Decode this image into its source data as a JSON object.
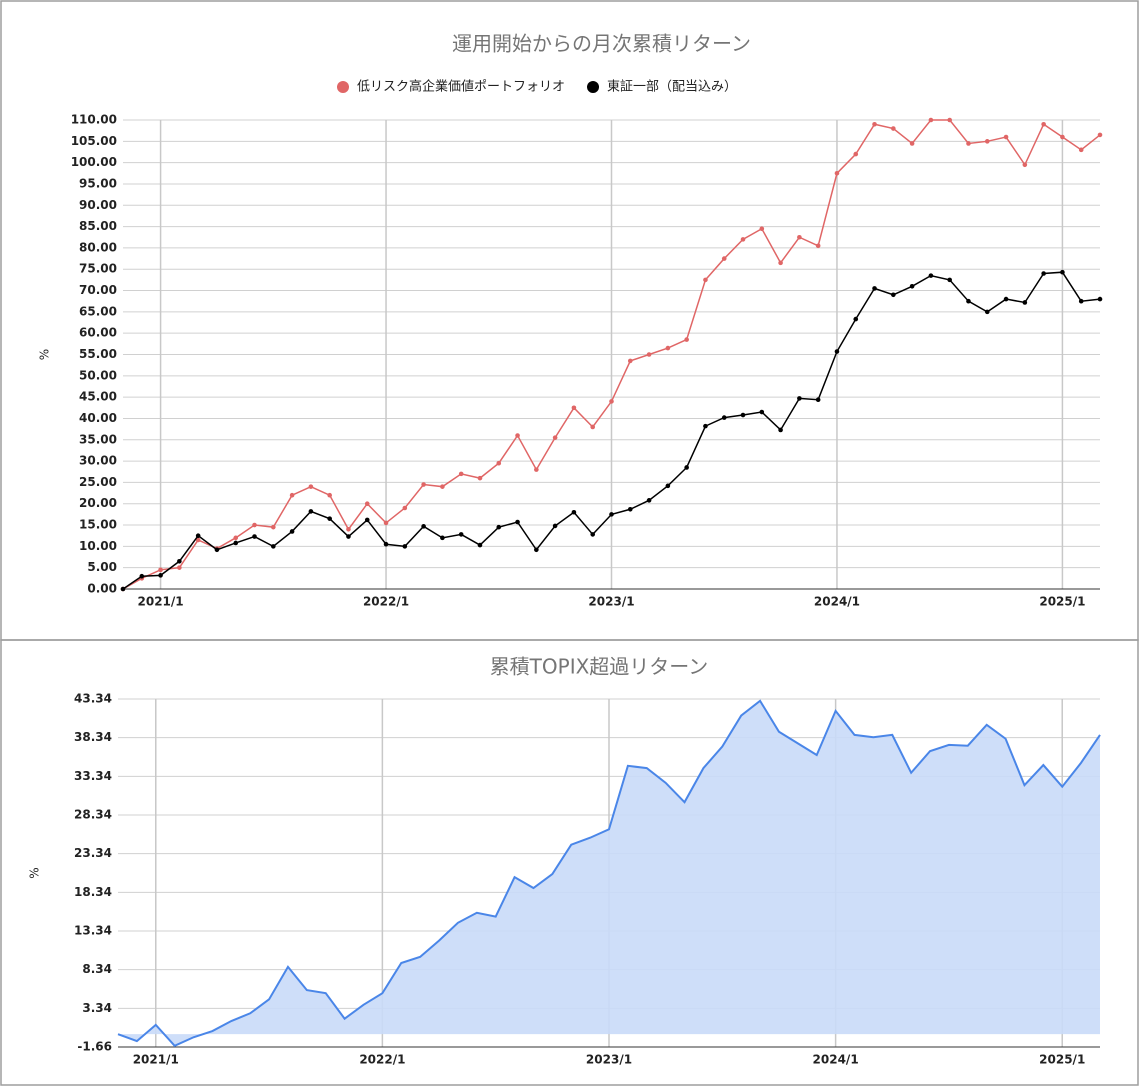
{
  "chart_data": [
    {
      "type": "line",
      "title": "運用開始からの月次累積リターン",
      "y_label": "%",
      "legend": "top",
      "grid": true,
      "categories": [
        null,
        null,
        "2021/1",
        null,
        null,
        null,
        null,
        null,
        null,
        null,
        null,
        null,
        null,
        null,
        "2022/1",
        null,
        null,
        null,
        null,
        null,
        null,
        null,
        null,
        null,
        null,
        null,
        "2023/1",
        null,
        null,
        null,
        null,
        null,
        null,
        null,
        null,
        null,
        null,
        null,
        "2024/1",
        null,
        null,
        null,
        null,
        null,
        null,
        null,
        null,
        null,
        null,
        null,
        "2025/1",
        null,
        null
      ],
      "series": [
        {
          "name": "低リスク高企業価値ポートフォリオ",
          "color": "#e06666",
          "values": [
            0,
            2.5,
            4.5,
            5,
            11.5,
            9.5,
            12,
            15,
            14.5,
            22,
            24,
            22,
            14,
            20,
            15.5,
            19,
            24.5,
            24,
            27,
            26,
            29.5,
            36,
            28,
            35.5,
            42.5,
            38,
            44,
            53.5,
            55,
            56.5,
            58.5,
            72.5,
            77.5,
            82,
            84.5,
            76.5,
            82.5,
            80.5,
            97.5,
            102,
            109,
            108,
            104.5,
            110,
            110,
            104.5,
            105,
            106,
            99.5,
            109,
            106,
            103,
            106.5
          ]
        },
        {
          "name": "東証一部（配当込み）",
          "color": "#000000",
          "values": [
            0,
            3,
            3.2,
            6.5,
            12.5,
            9.2,
            10.8,
            12.3,
            10,
            13.5,
            18.2,
            16.5,
            12.3,
            16.2,
            10.5,
            10,
            14.7,
            12,
            12.8,
            10.3,
            14.5,
            15.7,
            9.2,
            14.8,
            18,
            12.8,
            17.5,
            18.7,
            20.8,
            24.2,
            28.5,
            38.2,
            40.2,
            40.8,
            41.5,
            37.3,
            44.7,
            44.4,
            55.7,
            63.3,
            70.5,
            69,
            71,
            73.5,
            72.5,
            67.5,
            65,
            68,
            67.2,
            74,
            74.3,
            67.5,
            68
          ]
        }
      ],
      "ylim": [
        0,
        110
      ],
      "yticks": [
        {
          "value": 0,
          "label": "0.00"
        },
        {
          "value": 5,
          "label": "5.00"
        },
        {
          "value": 10,
          "label": "10.00"
        },
        {
          "value": 15,
          "label": "15.00"
        },
        {
          "value": 20,
          "label": "20.00"
        },
        {
          "value": 25,
          "label": "25.00"
        },
        {
          "value": 30,
          "label": "30.00"
        },
        {
          "value": 35,
          "label": "35.00"
        },
        {
          "value": 40,
          "label": "40.00"
        },
        {
          "value": 45,
          "label": "45.00"
        },
        {
          "value": 50,
          "label": "50.00"
        },
        {
          "value": 55,
          "label": "55.00"
        },
        {
          "value": 60,
          "label": "60.00"
        },
        {
          "value": 65,
          "label": "65.00"
        },
        {
          "value": 70,
          "label": "70.00"
        },
        {
          "value": 75,
          "label": "75.00"
        },
        {
          "value": 80,
          "label": "80.00"
        },
        {
          "value": 85,
          "label": "85.00"
        },
        {
          "value": 90,
          "label": "90.00"
        },
        {
          "value": 95,
          "label": "95.00"
        },
        {
          "value": 100,
          "label": "100.00"
        },
        {
          "value": 105,
          "label": "105.00"
        },
        {
          "value": 110,
          "label": "110.00"
        }
      ]
    },
    {
      "type": "area",
      "title": "累積TOPIX超過リターン",
      "y_label": "%",
      "grid": true,
      "color": "#4a86e8",
      "fill": "#c9daf8",
      "categories": [
        null,
        null,
        "2021/1",
        null,
        null,
        null,
        null,
        null,
        null,
        null,
        null,
        null,
        null,
        null,
        "2022/1",
        null,
        null,
        null,
        null,
        null,
        null,
        null,
        null,
        null,
        null,
        null,
        "2023/1",
        null,
        null,
        null,
        null,
        null,
        null,
        null,
        null,
        null,
        null,
        null,
        "2024/1",
        null,
        null,
        null,
        null,
        null,
        null,
        null,
        null,
        null,
        null,
        null,
        "2025/1",
        null,
        null
      ],
      "values": [
        0,
        -0.9,
        1.2,
        -1.5,
        -0.4,
        0.4,
        1.7,
        2.7,
        4.5,
        8.7,
        5.7,
        5.3,
        2,
        3.8,
        5.3,
        9.2,
        10,
        12.1,
        14.4,
        15.7,
        15.2,
        20.3,
        18.9,
        20.7,
        24.5,
        25.4,
        26.5,
        34.7,
        34.4,
        32.5,
        30,
        34.4,
        37.2,
        41.2,
        43.1,
        39.1,
        37.6,
        36.1,
        41.8,
        38.7,
        38.4,
        38.7,
        33.8,
        36.6,
        37.4,
        37.3,
        40,
        38.2,
        32.2,
        34.8,
        32,
        35.1,
        38.7
      ],
      "ylim": [
        -1.66,
        43.34
      ],
      "yticks": [
        -1.66,
        3.34,
        8.34,
        13.34,
        18.34,
        23.34,
        28.34,
        33.34,
        38.34,
        43.34
      ]
    }
  ]
}
